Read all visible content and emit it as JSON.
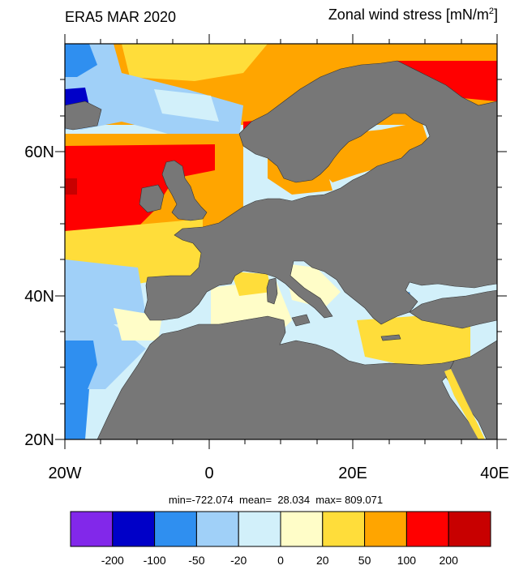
{
  "header": {
    "left_title": "ERA5 MAR 2020",
    "right_title_text": "Zonal wind stress [mN/m",
    "right_title_sup": "2",
    "right_title_end": "]"
  },
  "axes": {
    "lat_labels": [
      "60N",
      "40N",
      "20N"
    ],
    "lon_labels": [
      "20W",
      "0",
      "20E",
      "40E"
    ]
  },
  "stats": {
    "text": "min=-722.074  mean=  28.034  max= 809.071"
  },
  "colorbar": {
    "colors": [
      "#8228ea",
      "#0000c8",
      "#2f8ff0",
      "#a0d0f8",
      "#d2f0fa",
      "#fffdc8",
      "#ffdd3a",
      "#ffa500",
      "#ff0000",
      "#c80000"
    ],
    "labels": [
      "-200",
      "-100",
      "-50",
      "-20",
      "0",
      "20",
      "50",
      "100",
      "200"
    ]
  },
  "colors": {
    "land": "#777777",
    "ocean_default": "#d2f0fa"
  }
}
